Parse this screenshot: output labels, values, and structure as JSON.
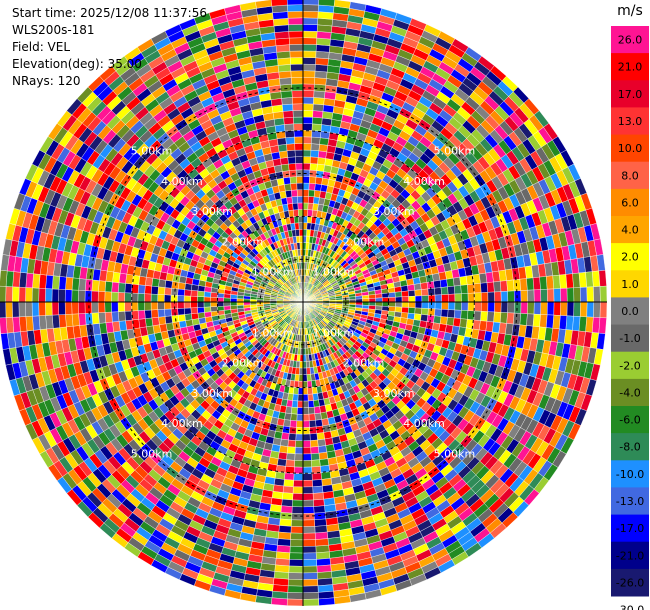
{
  "header": {
    "start_time": "Start time: 2025/12/08 11:37:56",
    "instrument": "WLS200s-181",
    "field": "Field: VEL",
    "elevation": "Elevation(deg): 35.00",
    "nrays": "NRays: 120"
  },
  "chart_data": {
    "type": "heatmap",
    "projection": "polar (PPI)",
    "field": "VEL",
    "elevation_deg": 35.0,
    "n_rays": 120,
    "range_rings": [
      {
        "label": "1.00km",
        "range_km": 1.0
      },
      {
        "label": "2.00km",
        "range_km": 2.0
      },
      {
        "label": "3.00km",
        "range_km": 3.0
      },
      {
        "label": "4.00km",
        "range_km": 4.0
      },
      {
        "label": "5.00km",
        "range_km": 5.0
      }
    ],
    "max_range_km": 7.1,
    "colorbar": {
      "unit": "m/s",
      "boundaries": [
        "26.0",
        "21.0",
        "17.0",
        "13.0",
        "10.0",
        "8.0",
        "6.0",
        "4.0",
        "2.0",
        "1.0",
        "0.0",
        "-1.0",
        "-2.0",
        "-4.0",
        "-6.0",
        "-8.0",
        "-10.0",
        "-13.0",
        "-17.0",
        "-21.0",
        "-26.0",
        "-30.0"
      ],
      "colors": [
        "#ff1493",
        "#ff0000",
        "#e8002a",
        "#ff3333",
        "#ff4500",
        "#ff6347",
        "#ff8c00",
        "#ffa500",
        "#ffff00",
        "#ffd700",
        "#808080",
        "#696969",
        "#9acd32",
        "#6b8e23",
        "#228b22",
        "#2e8b57",
        "#1e90ff",
        "#4169e1",
        "#0000ff",
        "#00008b",
        "#191970"
      ]
    }
  }
}
